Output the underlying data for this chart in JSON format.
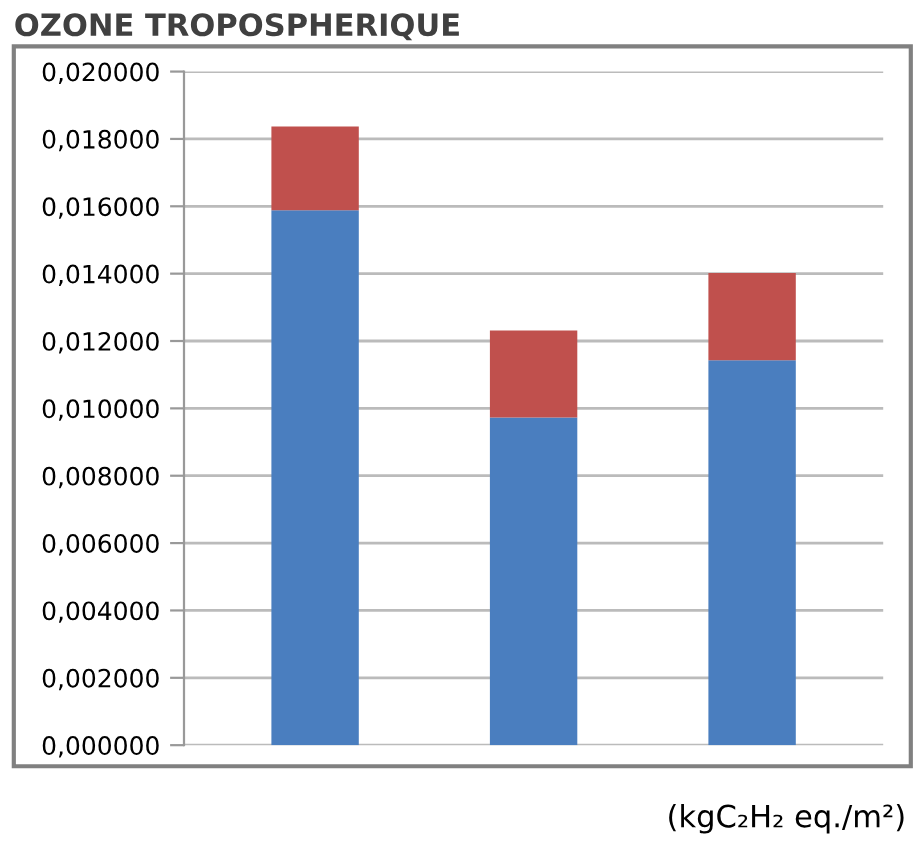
{
  "chart_data": {
    "type": "bar",
    "title": "OZONE TROPOSPHERIQUE",
    "stacked": true,
    "grid": "y",
    "categories": [
      null,
      null,
      null
    ],
    "series": [
      {
        "color": "#4a7ebf",
        "values": [
          0.01588,
          0.00973,
          0.01143
        ]
      },
      {
        "color": "#c0504d",
        "values": [
          0.00249,
          0.00258,
          0.00259
        ]
      }
    ],
    "ylim": [
      0,
      0.02
    ],
    "yticks": [
      {
        "value": 0,
        "label": "0,000000"
      },
      {
        "value": 0.002,
        "label": "0,002000"
      },
      {
        "value": 0.004,
        "label": "0,004000"
      },
      {
        "value": 0.006,
        "label": "0,006000"
      },
      {
        "value": 0.008,
        "label": "0,008000"
      },
      {
        "value": 0.01,
        "label": "0,010000"
      },
      {
        "value": 0.012,
        "label": "0,012000"
      },
      {
        "value": 0.014,
        "label": "0,014000"
      },
      {
        "value": 0.016,
        "label": "0,016000"
      },
      {
        "value": 0.018,
        "label": "0,018000"
      },
      {
        "value": 0.02,
        "label": "0,020000"
      }
    ],
    "annotations": [
      "(kgC₂H₂ eq./m²)"
    ]
  }
}
